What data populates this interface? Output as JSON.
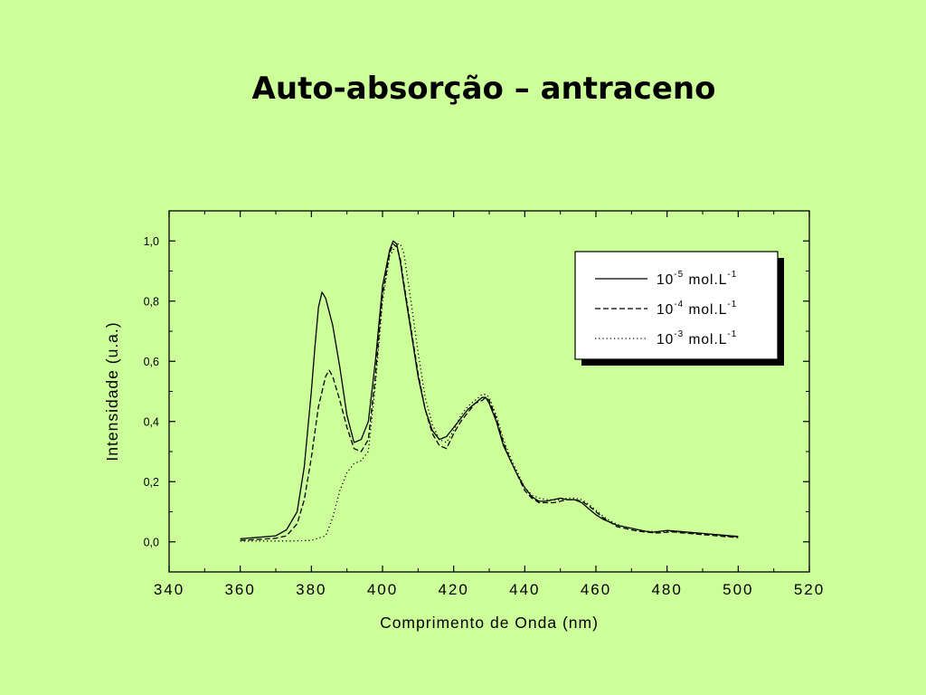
{
  "slide": {
    "title": "Auto-absorção – antraceno"
  },
  "colors": {
    "background": "#ccff99",
    "ink": "#000000",
    "legend_bg": "#ffffff"
  },
  "chart_data": {
    "type": "line",
    "title": "",
    "xlabel": "Comprimento de Onda (nm)",
    "ylabel": "Intensidade (u.a.)",
    "xlim": [
      340,
      520
    ],
    "ylim": [
      -0.1,
      1.1
    ],
    "xticks": [
      340,
      360,
      380,
      400,
      420,
      440,
      460,
      480,
      500,
      520
    ],
    "xtick_labels": [
      "340",
      "360",
      "380",
      "400",
      "420",
      "440",
      "460",
      "480",
      "500",
      "520"
    ],
    "yticks": [
      0.0,
      0.2,
      0.4,
      0.6,
      0.8,
      1.0
    ],
    "ytick_labels": [
      "0,0",
      "0,2",
      "0,4",
      "0,6",
      "0,8",
      "1,0"
    ],
    "legend_position": "top-right",
    "series": [
      {
        "name": "10-5 mol.L-1",
        "legend": {
          "base": "10",
          "exp": "-5",
          "unit": "mol.L",
          "unit_exp": "-1"
        },
        "style": "solid",
        "x": [
          360,
          365,
          370,
          373,
          376,
          378,
          380,
          381,
          382,
          383,
          384,
          386,
          388,
          390,
          392,
          394,
          396,
          398,
          400,
          402,
          403,
          404,
          405,
          406,
          408,
          410,
          412,
          414,
          416,
          418,
          420,
          422,
          424,
          426,
          428,
          429,
          430,
          432,
          434,
          436,
          438,
          440,
          442,
          444,
          446,
          448,
          450,
          452,
          454,
          456,
          458,
          460,
          462,
          464,
          466,
          468,
          470,
          472,
          474,
          476,
          478,
          480,
          482,
          484,
          486,
          488,
          490,
          492,
          494,
          496,
          498,
          500
        ],
        "y": [
          0.01,
          0.015,
          0.02,
          0.04,
          0.1,
          0.25,
          0.5,
          0.65,
          0.78,
          0.83,
          0.81,
          0.72,
          0.58,
          0.42,
          0.33,
          0.34,
          0.4,
          0.6,
          0.85,
          0.97,
          1.0,
          0.99,
          0.93,
          0.85,
          0.7,
          0.55,
          0.44,
          0.37,
          0.34,
          0.35,
          0.38,
          0.41,
          0.44,
          0.46,
          0.48,
          0.48,
          0.46,
          0.4,
          0.32,
          0.27,
          0.22,
          0.18,
          0.15,
          0.135,
          0.135,
          0.14,
          0.145,
          0.14,
          0.14,
          0.13,
          0.11,
          0.09,
          0.075,
          0.065,
          0.055,
          0.05,
          0.045,
          0.04,
          0.035,
          0.032,
          0.035,
          0.038,
          0.036,
          0.034,
          0.032,
          0.03,
          0.028,
          0.026,
          0.024,
          0.022,
          0.02,
          0.018
        ]
      },
      {
        "name": "10-4 mol.L-1",
        "legend": {
          "base": "10",
          "exp": "-4",
          "unit": "mol.L",
          "unit_exp": "-1"
        },
        "style": "dashed",
        "x": [
          360,
          365,
          370,
          373,
          376,
          378,
          380,
          382,
          384,
          385,
          386,
          388,
          390,
          392,
          394,
          396,
          398,
          400,
          402,
          403,
          404,
          405,
          406,
          408,
          410,
          412,
          414,
          416,
          418,
          420,
          422,
          424,
          426,
          428,
          429,
          430,
          432,
          434,
          436,
          438,
          440,
          442,
          444,
          446,
          448,
          450,
          452,
          454,
          456,
          458,
          460,
          462,
          464,
          466,
          468,
          470,
          472,
          474,
          476,
          478,
          480,
          482,
          484,
          486,
          488,
          490,
          492,
          494,
          496,
          498,
          500
        ],
        "y": [
          0.005,
          0.008,
          0.012,
          0.02,
          0.06,
          0.14,
          0.28,
          0.45,
          0.55,
          0.57,
          0.55,
          0.47,
          0.38,
          0.31,
          0.3,
          0.34,
          0.55,
          0.82,
          0.96,
          0.99,
          0.98,
          0.94,
          0.86,
          0.71,
          0.56,
          0.44,
          0.36,
          0.32,
          0.31,
          0.36,
          0.4,
          0.43,
          0.46,
          0.47,
          0.48,
          0.47,
          0.41,
          0.33,
          0.27,
          0.22,
          0.17,
          0.145,
          0.13,
          0.13,
          0.13,
          0.135,
          0.14,
          0.14,
          0.135,
          0.12,
          0.1,
          0.08,
          0.065,
          0.05,
          0.045,
          0.04,
          0.035,
          0.033,
          0.03,
          0.03,
          0.032,
          0.033,
          0.03,
          0.028,
          0.026,
          0.024,
          0.022,
          0.02,
          0.018,
          0.016,
          0.014
        ]
      },
      {
        "name": "10-3 mol.L-1",
        "legend": {
          "base": "10",
          "exp": "-3",
          "unit": "mol.L",
          "unit_exp": "-1"
        },
        "style": "dotted",
        "x": [
          360,
          365,
          370,
          375,
          380,
          384,
          386,
          388,
          390,
          392,
          394,
          396,
          398,
          400,
          402,
          404,
          405,
          406,
          408,
          410,
          412,
          414,
          416,
          418,
          420,
          422,
          424,
          426,
          428,
          429,
          430,
          432,
          434,
          436,
          438,
          440,
          442,
          444,
          446,
          448,
          450,
          452,
          454,
          456,
          458,
          460,
          462,
          464,
          466,
          468,
          470,
          472,
          474,
          476,
          478,
          480,
          482,
          484,
          486,
          488,
          490,
          492,
          494,
          496,
          498,
          500
        ],
        "y": [
          0.003,
          0.003,
          0.003,
          0.003,
          0.005,
          0.02,
          0.08,
          0.17,
          0.23,
          0.26,
          0.27,
          0.3,
          0.52,
          0.8,
          0.95,
          0.99,
          0.99,
          0.96,
          0.8,
          0.63,
          0.48,
          0.39,
          0.34,
          0.33,
          0.37,
          0.42,
          0.45,
          0.47,
          0.49,
          0.49,
          0.48,
          0.42,
          0.34,
          0.28,
          0.23,
          0.18,
          0.155,
          0.145,
          0.14,
          0.14,
          0.14,
          0.145,
          0.145,
          0.14,
          0.125,
          0.105,
          0.085,
          0.07,
          0.058,
          0.05,
          0.044,
          0.04,
          0.036,
          0.034,
          0.034,
          0.036,
          0.034,
          0.032,
          0.03,
          0.028,
          0.026,
          0.024,
          0.022,
          0.02,
          0.018,
          0.016
        ]
      }
    ]
  }
}
